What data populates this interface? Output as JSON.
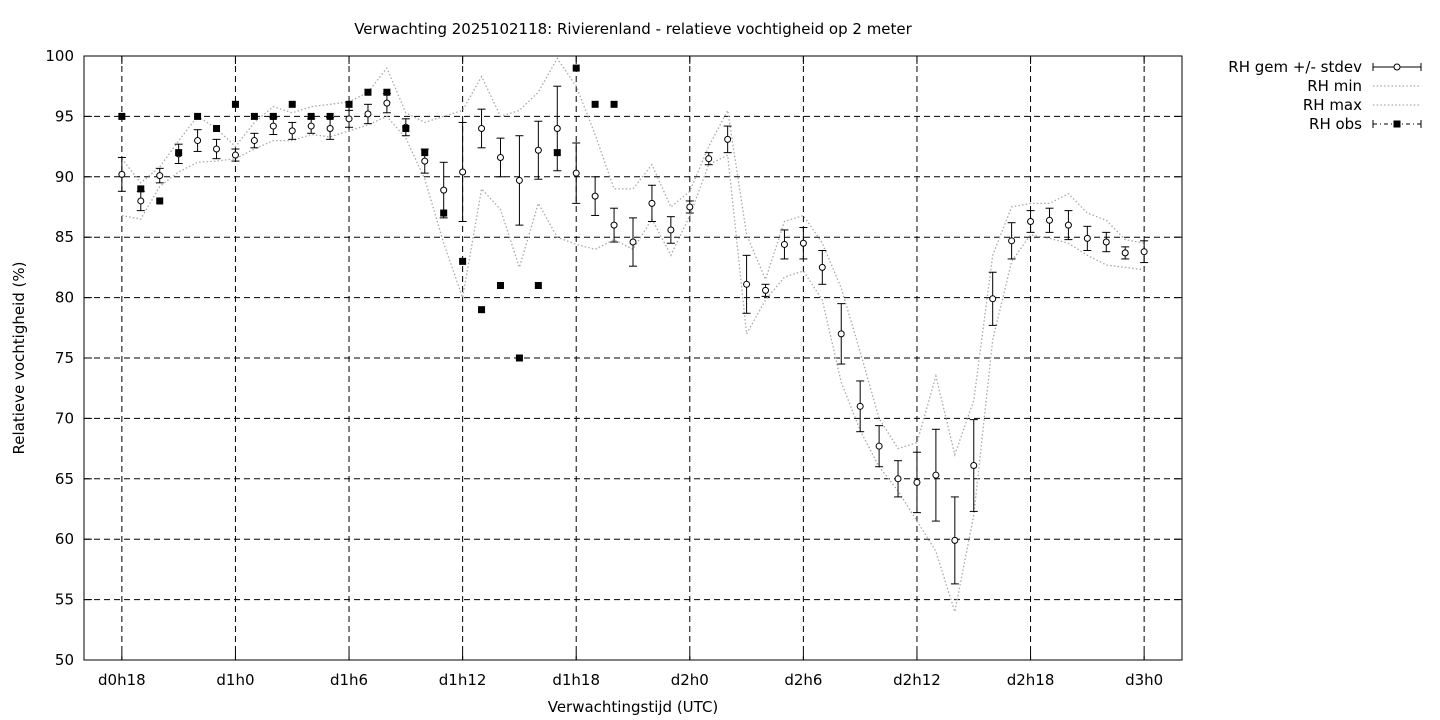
{
  "chart_data": {
    "type": "line",
    "title": "Verwachting 2025102118: Rivierenland - relatieve vochtigheid op 2 meter",
    "xlabel": "Verwachtingstijd (UTC)",
    "ylabel": "Relatieve vochtigheid (%)",
    "ylim": [
      50,
      100
    ],
    "yticks": [
      50,
      55,
      60,
      65,
      70,
      75,
      80,
      85,
      90,
      95,
      100
    ],
    "x_unit": "hours since d0h18",
    "xlim": [
      -2,
      56
    ],
    "xticks": [
      {
        "x": 0,
        "label": "d0h18"
      },
      {
        "x": 6,
        "label": "d1h0"
      },
      {
        "x": 12,
        "label": "d1h6"
      },
      {
        "x": 18,
        "label": "d1h12"
      },
      {
        "x": 24,
        "label": "d1h18"
      },
      {
        "x": 30,
        "label": "d2h0"
      },
      {
        "x": 36,
        "label": "d2h6"
      },
      {
        "x": 42,
        "label": "d2h12"
      },
      {
        "x": 48,
        "label": "d2h18"
      },
      {
        "x": 54,
        "label": "d3h0"
      }
    ],
    "grid": true,
    "legend_position": "top-right, outside plot",
    "series": [
      {
        "name": "RH gem +/- stdev",
        "style": "errorbar",
        "x": [
          0,
          1,
          2,
          3,
          4,
          5,
          6,
          7,
          8,
          9,
          10,
          11,
          12,
          13,
          14,
          15,
          16,
          17,
          18,
          19,
          20,
          21,
          22,
          23,
          24,
          25,
          26,
          27,
          28,
          29,
          30,
          31,
          32,
          33,
          34,
          35,
          36,
          37,
          38,
          39,
          40,
          41,
          42,
          43,
          44,
          45,
          46,
          47,
          48,
          49,
          50,
          51,
          52,
          53,
          54
        ],
        "mean": [
          90.2,
          88.0,
          90.1,
          91.9,
          93.0,
          92.3,
          91.8,
          93.0,
          94.2,
          93.8,
          94.2,
          94.0,
          94.8,
          95.2,
          96.1,
          94.1,
          91.3,
          88.9,
          90.4,
          94.0,
          91.6,
          89.7,
          92.2,
          94.0,
          90.3,
          88.4,
          86.0,
          84.6,
          87.8,
          85.6,
          87.5,
          91.5,
          93.1,
          81.1,
          80.6,
          84.4,
          84.5,
          82.5,
          77.0,
          71.0,
          67.7,
          65.0,
          64.7,
          65.3,
          59.9,
          66.1,
          79.9,
          84.7,
          86.3,
          86.4,
          86.0,
          84.9,
          84.6,
          83.7,
          83.8
        ],
        "stdev": [
          1.4,
          0.8,
          0.6,
          0.8,
          0.9,
          0.8,
          0.5,
          0.6,
          0.7,
          0.7,
          0.6,
          0.9,
          0.7,
          0.8,
          0.8,
          0.7,
          1.0,
          2.3,
          4.1,
          1.6,
          1.6,
          3.7,
          2.4,
          3.5,
          2.5,
          1.6,
          1.4,
          2.0,
          1.5,
          1.1,
          0.5,
          0.5,
          1.1,
          2.4,
          0.5,
          1.2,
          1.3,
          1.4,
          2.5,
          2.1,
          1.7,
          1.5,
          2.5,
          3.8,
          3.6,
          3.8,
          2.2,
          1.5,
          0.9,
          1.0,
          1.2,
          1.0,
          0.8,
          0.5,
          0.9
        ]
      },
      {
        "name": "RH min",
        "style": "dotted",
        "x": [
          0,
          1,
          2,
          3,
          4,
          5,
          6,
          7,
          8,
          9,
          10,
          11,
          12,
          13,
          14,
          15,
          16,
          17,
          18,
          19,
          20,
          21,
          22,
          23,
          24,
          25,
          26,
          27,
          28,
          29,
          30,
          31,
          32,
          33,
          34,
          35,
          36,
          37,
          38,
          39,
          40,
          41,
          42,
          43,
          44,
          45,
          46,
          47,
          48,
          49,
          50,
          51,
          52,
          53,
          54
        ],
        "values": [
          86.8,
          86.5,
          89.2,
          90.4,
          91.2,
          91.3,
          91.5,
          92.3,
          93.0,
          93.0,
          93.5,
          93.3,
          93.8,
          94.3,
          95.0,
          93.2,
          89.8,
          84.5,
          80.0,
          89.0,
          87.3,
          82.5,
          87.8,
          85.0,
          84.4,
          84.0,
          84.8,
          84.0,
          86.5,
          83.5,
          86.8,
          91.0,
          91.8,
          77.0,
          79.8,
          81.7,
          82.2,
          79.8,
          73.0,
          69.0,
          66.0,
          64.0,
          61.5,
          59.0,
          54.0,
          62.0,
          76.5,
          83.0,
          85.2,
          84.9,
          84.5,
          83.5,
          82.7,
          82.5,
          82.3
        ]
      },
      {
        "name": "RH max",
        "style": "dotted",
        "x": [
          0,
          1,
          2,
          3,
          4,
          5,
          6,
          7,
          8,
          9,
          10,
          11,
          12,
          13,
          14,
          15,
          16,
          17,
          18,
          19,
          20,
          21,
          22,
          23,
          24,
          25,
          26,
          27,
          28,
          29,
          30,
          31,
          32,
          33,
          34,
          35,
          36,
          37,
          38,
          39,
          40,
          41,
          42,
          43,
          44,
          45,
          46,
          47,
          48,
          49,
          50,
          51,
          52,
          53,
          54
        ],
        "values": [
          91.5,
          89.5,
          90.8,
          93.0,
          95.0,
          94.0,
          92.5,
          94.5,
          95.8,
          95.3,
          95.8,
          96.0,
          96.2,
          97.0,
          99.0,
          95.3,
          94.5,
          95.0,
          95.5,
          98.3,
          95.0,
          95.5,
          97.0,
          99.8,
          97.5,
          93.5,
          89.0,
          89.0,
          91.0,
          87.5,
          88.8,
          92.5,
          95.5,
          85.2,
          81.5,
          86.3,
          86.8,
          84.5,
          80.8,
          75.5,
          70.0,
          67.5,
          68.0,
          73.5,
          67.0,
          71.5,
          83.5,
          87.5,
          87.8,
          87.8,
          88.6,
          87.0,
          86.4,
          84.8,
          84.5
        ]
      },
      {
        "name": "RH obs",
        "style": "points",
        "x": [
          0,
          1,
          2,
          3,
          4,
          5,
          6,
          7,
          8,
          9,
          10,
          11,
          12,
          13,
          14,
          15,
          16,
          17,
          18,
          19,
          20,
          21,
          22,
          23,
          24,
          25,
          26
        ],
        "values": [
          95,
          89,
          88,
          92,
          95,
          94,
          96,
          95,
          95,
          96,
          95,
          95,
          96,
          97,
          97,
          94,
          92,
          87,
          83,
          79,
          81,
          75,
          81,
          92,
          99,
          96,
          96
        ]
      }
    ]
  }
}
